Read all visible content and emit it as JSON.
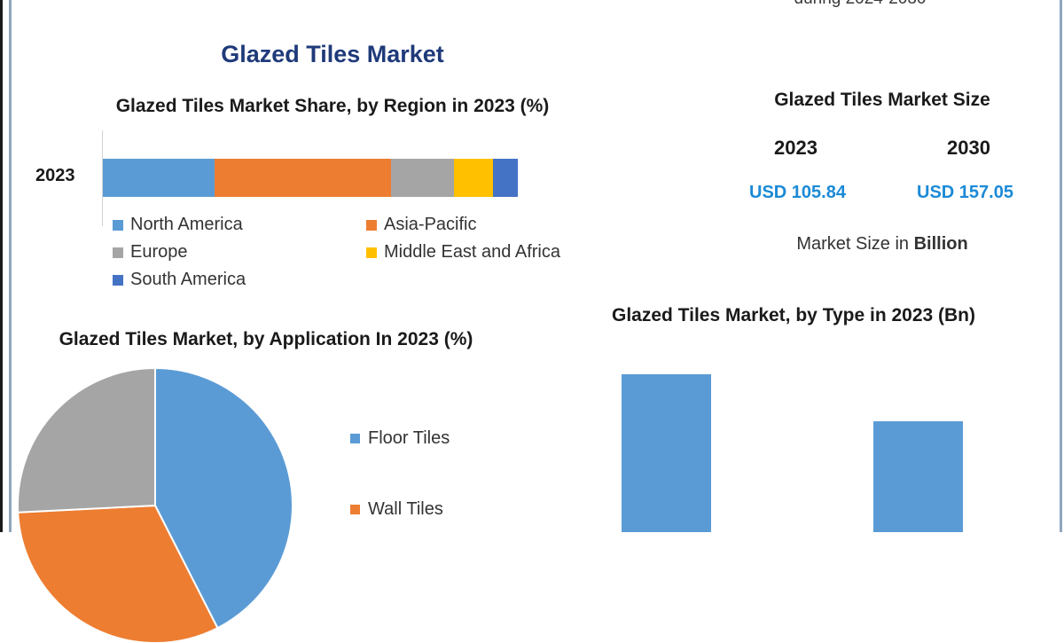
{
  "header": {
    "subtitle_fragment": "during 2024-2030",
    "title": "Glazed Tiles Market"
  },
  "region_chart": {
    "title": "Glazed Tiles Market Share, by Region in 2023 (%)",
    "bar_label": "2023",
    "legend": [
      {
        "label": "North America",
        "color": "#5b9bd5"
      },
      {
        "label": "Asia-Pacific",
        "color": "#ed7d31"
      },
      {
        "label": "Europe",
        "color": "#a5a5a5"
      },
      {
        "label": "Middle East and Africa",
        "color": "#ffc000"
      },
      {
        "label": "South America",
        "color": "#4472c4"
      }
    ]
  },
  "market_size": {
    "title": "Glazed Tiles Market Size",
    "years": [
      "2023",
      "2030"
    ],
    "values": [
      "USD 105.84",
      "USD 157.05"
    ],
    "unit_prefix": "Market Size in ",
    "unit_bold": "Billion",
    "value_color": "#1b8ad6"
  },
  "application_chart": {
    "title": "Glazed Tiles Market, by Application In 2023 (%)",
    "legend": [
      {
        "label": "Floor Tiles",
        "color": "#5b9bd5"
      },
      {
        "label": "Wall Tiles",
        "color": "#ed7d31"
      }
    ]
  },
  "type_chart": {
    "title": "Glazed Tiles Market, by Type in 2023 (Bn)"
  },
  "chart_data": [
    {
      "type": "bar",
      "orientation": "horizontal-stacked",
      "title": "Glazed Tiles Market Share, by Region in 2023 (%)",
      "categories": [
        "2023"
      ],
      "series": [
        {
          "name": "North America",
          "values": [
            27
          ]
        },
        {
          "name": "Asia-Pacific",
          "values": [
            42.5
          ]
        },
        {
          "name": "Europe",
          "values": [
            15.2
          ]
        },
        {
          "name": "Middle East and Africa",
          "values": [
            9.3
          ]
        },
        {
          "name": "South America",
          "values": [
            6
          ]
        }
      ],
      "xlabel": "",
      "ylabel": "",
      "legend_position": "bottom",
      "grid": false
    },
    {
      "type": "pie",
      "title": "Glazed Tiles Market, by Application In 2023 (%)",
      "categories": [
        "Floor Tiles",
        "Wall Tiles",
        "(unlabeled gray segment)"
      ],
      "values": [
        42.5,
        31.7,
        25.8
      ],
      "colors": [
        "#5b9bd5",
        "#ed7d31",
        "#a5a5a5"
      ],
      "legend_position": "right"
    },
    {
      "type": "bar",
      "title": "Glazed Tiles Market, by Type in 2023 (Bn)",
      "categories": [
        "(type 1)",
        "(type 2)"
      ],
      "values": [
        60,
        42
      ],
      "note": "relative heights only; axis not visible",
      "grid": false
    }
  ]
}
